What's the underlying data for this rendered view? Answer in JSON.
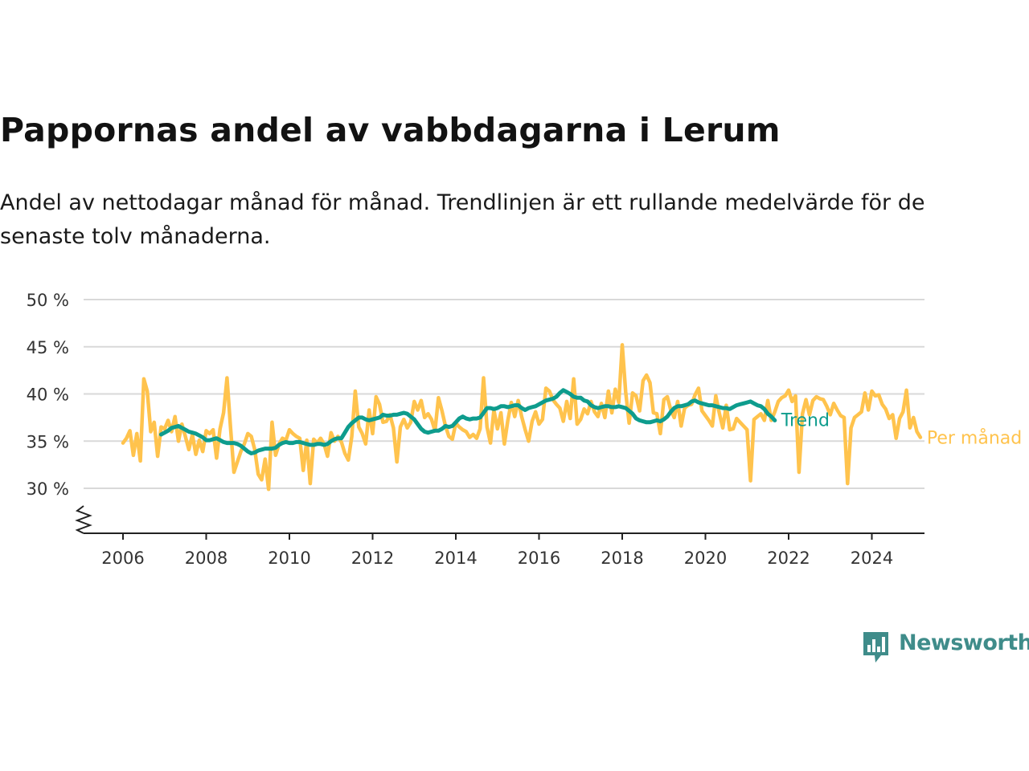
{
  "title": "Pappornas andel av vabbdagarna i Lerum",
  "subtitle": "Andel av nettodagar månad för månad. Trendlinjen är ett rullande medelvärde för de senaste tolv månaderna.",
  "brand": {
    "name": "Newsworthy",
    "color": "#3f8c8a"
  },
  "chart_data": {
    "type": "line",
    "title": "Pappornas andel av vabbdagarna i Lerum",
    "subtitle": "Andel av nettodagar månad för månad. Trendlinjen är ett rullande medelvärde för de senaste tolv månaderna.",
    "xlabel": "",
    "ylabel": "",
    "xlim": [
      2005.0,
      2025.2
    ],
    "ylim": [
      25,
      50
    ],
    "y_ticks": [
      30,
      35,
      40,
      45,
      50
    ],
    "y_tick_labels": [
      "30 %",
      "35 %",
      "40 %",
      "45 %",
      "50 %"
    ],
    "x_ticks": [
      2006,
      2008,
      2010,
      2012,
      2014,
      2016,
      2018,
      2020,
      2022,
      2024
    ],
    "x_tick_labels": [
      "2006",
      "2008",
      "2010",
      "2012",
      "2014",
      "2016",
      "2018",
      "2020",
      "2022",
      "2024"
    ],
    "axis_break": true,
    "grid": "horizontal",
    "legend": "end-of-line labels",
    "series": [
      {
        "name": "Per månad",
        "color": "#FFC34D",
        "x_start": "2006-01",
        "frequency": "monthly",
        "values": [
          34.8,
          35.3,
          36.1,
          33.5,
          35.8,
          32.9,
          41.6,
          40.3,
          36.0,
          37.0,
          33.4,
          36.5,
          36.3,
          37.2,
          36.0,
          37.6,
          35.0,
          36.8,
          35.5,
          34.1,
          35.7,
          33.6,
          35.1,
          33.9,
          36.1,
          35.8,
          36.2,
          33.2,
          36.3,
          38.0,
          41.7,
          36.5,
          31.7,
          32.8,
          33.9,
          34.7,
          35.8,
          35.5,
          34.1,
          31.5,
          30.9,
          33.1,
          29.9,
          37.0,
          33.5,
          34.7,
          35.3,
          35.1,
          36.2,
          35.8,
          35.5,
          35.3,
          31.9,
          35.1,
          30.5,
          35.2,
          34.8,
          35.3,
          34.7,
          33.4,
          35.9,
          35.0,
          35.5,
          34.9,
          33.7,
          33.0,
          35.5,
          40.3,
          36.5,
          35.8,
          34.7,
          38.3,
          35.8,
          39.7,
          38.9,
          37.0,
          37.1,
          37.8,
          36.4,
          32.8,
          36.5,
          37.3,
          36.4,
          37.0,
          39.2,
          38.3,
          39.3,
          37.5,
          37.9,
          37.3,
          36.1,
          39.6,
          38.2,
          36.6,
          35.5,
          35.2,
          36.9,
          36.5,
          36.2,
          36.0,
          35.4,
          35.7,
          35.3,
          36.3,
          41.7,
          36.5,
          34.8,
          38.3,
          36.3,
          38.0,
          34.7,
          37.2,
          39.1,
          37.6,
          39.3,
          37.6,
          36.2,
          35.0,
          37.1,
          38.1,
          36.8,
          37.3,
          40.6,
          40.3,
          39.4,
          38.9,
          38.5,
          37.1,
          39.2,
          37.4,
          41.6,
          36.8,
          37.3,
          38.4,
          37.9,
          39.2,
          38.1,
          37.6,
          39.0,
          37.5,
          40.3,
          38.0,
          40.5,
          39.1,
          45.2,
          40.2,
          36.9,
          40.1,
          39.8,
          38.2,
          41.4,
          42.0,
          41.2,
          38.0,
          37.9,
          35.8,
          39.4,
          39.7,
          38.3,
          37.5,
          39.2,
          36.6,
          38.5,
          38.8,
          38.9,
          39.9,
          40.6,
          38.2,
          37.7,
          37.2,
          36.6,
          39.8,
          38.0,
          36.4,
          38.8,
          36.2,
          36.3,
          37.4,
          37.0,
          36.6,
          36.2,
          30.8,
          37.3,
          37.6,
          37.9,
          37.2,
          39.3,
          37.2,
          38.1,
          39.2,
          39.6,
          39.8,
          40.4,
          39.2,
          39.8,
          31.7,
          37.9,
          39.4,
          37.8,
          39.3,
          39.7,
          39.5,
          39.4,
          38.7,
          37.8,
          39.0,
          38.3,
          37.7,
          37.5,
          30.5,
          36.4,
          37.5,
          37.8,
          38.1,
          40.1,
          38.3,
          40.3,
          39.8,
          39.9,
          38.9,
          38.4,
          37.4,
          37.8,
          35.3,
          37.4,
          38.1,
          40.4,
          36.4,
          37.5,
          36.0,
          35.4
        ]
      },
      {
        "name": "Trend",
        "color": "#0E9C8D",
        "x_start": "2006-12",
        "frequency": "monthly",
        "values": [
          35.7,
          35.9,
          36.1,
          36.4,
          36.5,
          36.6,
          36.4,
          36.2,
          36.0,
          35.9,
          35.8,
          35.6,
          35.4,
          35.1,
          35.1,
          35.2,
          35.3,
          35.1,
          34.9,
          34.8,
          34.8,
          34.8,
          34.7,
          34.5,
          34.2,
          33.9,
          33.7,
          33.8,
          34.0,
          34.1,
          34.2,
          34.2,
          34.2,
          34.3,
          34.6,
          34.8,
          34.9,
          34.8,
          34.8,
          34.9,
          34.9,
          34.8,
          34.7,
          34.6,
          34.6,
          34.7,
          34.7,
          34.6,
          34.7,
          35.0,
          35.2,
          35.3,
          35.3,
          35.9,
          36.5,
          36.9,
          37.2,
          37.5,
          37.5,
          37.3,
          37.2,
          37.3,
          37.4,
          37.5,
          37.8,
          37.7,
          37.7,
          37.8,
          37.8,
          37.9,
          38.0,
          37.9,
          37.6,
          37.3,
          36.8,
          36.3,
          36.0,
          35.9,
          36.0,
          36.1,
          36.1,
          36.3,
          36.6,
          36.5,
          36.6,
          37.0,
          37.4,
          37.6,
          37.4,
          37.3,
          37.4,
          37.4,
          37.5,
          38.0,
          38.5,
          38.5,
          38.4,
          38.5,
          38.7,
          38.7,
          38.6,
          38.7,
          38.8,
          38.8,
          38.5,
          38.3,
          38.5,
          38.6,
          38.7,
          38.9,
          39.1,
          39.3,
          39.4,
          39.5,
          39.7,
          40.1,
          40.4,
          40.2,
          40.0,
          39.7,
          39.6,
          39.6,
          39.3,
          39.2,
          38.8,
          38.6,
          38.5,
          38.6,
          38.7,
          38.7,
          38.6,
          38.6,
          38.7,
          38.6,
          38.5,
          38.2,
          37.9,
          37.4,
          37.2,
          37.1,
          37.0,
          37.0,
          37.1,
          37.2,
          37.1,
          37.3,
          37.6,
          38.1,
          38.5,
          38.7,
          38.7,
          38.8,
          38.9,
          39.2,
          39.3,
          39.1,
          39.0,
          38.9,
          38.8,
          38.8,
          38.7,
          38.6,
          38.5,
          38.5,
          38.4,
          38.6,
          38.8,
          38.9,
          39.0,
          39.1,
          39.2,
          39.0,
          38.8,
          38.7,
          38.4,
          37.9,
          37.6,
          37.2
        ]
      }
    ]
  }
}
